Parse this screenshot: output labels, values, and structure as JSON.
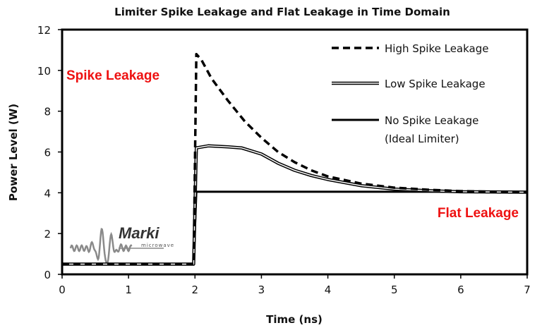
{
  "chart_data": {
    "type": "line",
    "title": "Limiter Spike Leakage and Flat Leakage in Time Domain",
    "xlabel": "Time (ns)",
    "ylabel": "Power Level (W)",
    "xlim": [
      0,
      7
    ],
    "ylim": [
      0,
      12
    ],
    "x_ticks": [
      "0",
      "1",
      "2",
      "3",
      "4",
      "5",
      "6",
      "7"
    ],
    "y_ticks": [
      "0",
      "2",
      "4",
      "6",
      "8",
      "10",
      "12"
    ],
    "grid": false,
    "legend_position": "top-right",
    "series": [
      {
        "name": "High Spike Leakage",
        "style": "dashed",
        "color": "#000000",
        "points": [
          [
            0,
            0.5
          ],
          [
            1.98,
            0.5
          ],
          [
            2.02,
            10.8
          ],
          [
            2.1,
            10.5
          ],
          [
            2.25,
            9.6
          ],
          [
            2.5,
            8.5
          ],
          [
            2.75,
            7.5
          ],
          [
            3.0,
            6.7
          ],
          [
            3.25,
            6.0
          ],
          [
            3.5,
            5.5
          ],
          [
            3.75,
            5.1
          ],
          [
            4.0,
            4.8
          ],
          [
            4.5,
            4.45
          ],
          [
            5.0,
            4.25
          ],
          [
            5.5,
            4.15
          ],
          [
            6.0,
            4.08
          ],
          [
            6.5,
            4.05
          ],
          [
            7.0,
            4.03
          ]
        ]
      },
      {
        "name": "Low Spike Leakage",
        "style": "double",
        "color": "#000000",
        "points": [
          [
            0,
            0.5
          ],
          [
            1.98,
            0.5
          ],
          [
            2.02,
            6.2
          ],
          [
            2.2,
            6.3
          ],
          [
            2.5,
            6.25
          ],
          [
            2.7,
            6.2
          ],
          [
            3.0,
            5.9
          ],
          [
            3.25,
            5.45
          ],
          [
            3.5,
            5.1
          ],
          [
            3.75,
            4.85
          ],
          [
            4.0,
            4.65
          ],
          [
            4.5,
            4.35
          ],
          [
            5.0,
            4.18
          ],
          [
            5.5,
            4.1
          ],
          [
            6.0,
            4.05
          ],
          [
            7.0,
            4.03
          ]
        ]
      },
      {
        "name": "No Spike Leakage\n(Ideal Limiter)",
        "style": "solid",
        "color": "#000000",
        "points": [
          [
            0,
            0.5
          ],
          [
            1.98,
            0.5
          ],
          [
            2.02,
            4.05
          ],
          [
            7.0,
            4.05
          ]
        ]
      }
    ],
    "annotations": [
      {
        "text": "Spike Leakage",
        "color": "#ee1111",
        "x": 2.0,
        "y": 9.8
      },
      {
        "text": "Flat Leakage",
        "color": "#ee1111",
        "x": 7.0,
        "y": 3.0
      }
    ]
  },
  "logo": {
    "name": "Marki",
    "sub": "microwave"
  }
}
